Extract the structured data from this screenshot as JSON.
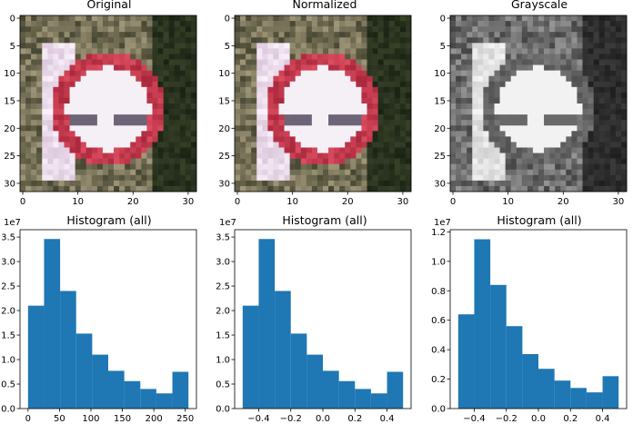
{
  "images": [
    {
      "title": "Original",
      "mode": "color",
      "xticks": [
        0,
        10,
        20,
        30
      ],
      "yticks": [
        0,
        5,
        10,
        15,
        20,
        25,
        30
      ]
    },
    {
      "title": "Normalized",
      "mode": "color",
      "xticks": [
        0,
        10,
        20,
        30
      ],
      "yticks": [
        0,
        5,
        10,
        15,
        20,
        25,
        30
      ]
    },
    {
      "title": "Grayscale",
      "mode": "gray",
      "xticks": [
        0,
        10,
        20,
        30
      ],
      "yticks": [
        0,
        5,
        10,
        15,
        20,
        25,
        30
      ]
    }
  ],
  "chart_data": [
    {
      "type": "bar",
      "title": "Histogram (all)",
      "bar_color": "#1f77b4",
      "xlim": [
        -12.75,
        267.75
      ],
      "ylim": [
        0,
        3.65
      ],
      "y_multiplier": "1e7",
      "bin_edges": [
        0,
        25.5,
        51,
        76.5,
        102,
        127.5,
        153,
        178.5,
        204,
        229.5,
        255
      ],
      "values": [
        2.1,
        3.46,
        2.4,
        1.53,
        1.1,
        0.77,
        0.56,
        0.4,
        0.31,
        0.75
      ],
      "xticks": [
        0,
        50,
        100,
        150,
        200,
        250
      ],
      "yticks": [
        0.0,
        0.5,
        1.0,
        1.5,
        2.0,
        2.5,
        3.0,
        3.5
      ],
      "xtick_labels": [
        "0",
        "50",
        "100",
        "150",
        "200",
        "250"
      ],
      "ytick_labels": [
        "0.0",
        "0.5",
        "1.0",
        "1.5",
        "2.0",
        "2.5",
        "3.0",
        "3.5"
      ]
    },
    {
      "type": "bar",
      "title": "Histogram (all)",
      "bar_color": "#1f77b4",
      "xlim": [
        -0.55,
        0.55
      ],
      "ylim": [
        0,
        3.65
      ],
      "y_multiplier": "1e7",
      "bin_edges": [
        -0.5,
        -0.4,
        -0.3,
        -0.2,
        -0.1,
        0.0,
        0.1,
        0.2,
        0.3,
        0.4,
        0.5
      ],
      "values": [
        2.1,
        3.46,
        2.4,
        1.53,
        1.1,
        0.77,
        0.56,
        0.4,
        0.31,
        0.75
      ],
      "xticks": [
        -0.4,
        -0.2,
        0.0,
        0.2,
        0.4
      ],
      "yticks": [
        0.0,
        0.5,
        1.0,
        1.5,
        2.0,
        2.5,
        3.0,
        3.5
      ],
      "xtick_labels": [
        "−0.4",
        "−0.2",
        "0.0",
        "0.2",
        "0.4"
      ],
      "ytick_labels": [
        "0.0",
        "0.5",
        "1.0",
        "1.5",
        "2.0",
        "2.5",
        "3.0",
        "3.5"
      ]
    },
    {
      "type": "bar",
      "title": "Histogram (all)",
      "bar_color": "#1f77b4",
      "xlim": [
        -0.55,
        0.55
      ],
      "ylim": [
        0,
        1.215
      ],
      "y_multiplier": "1e7",
      "bin_edges": [
        -0.5,
        -0.4,
        -0.3,
        -0.2,
        -0.1,
        0.0,
        0.1,
        0.2,
        0.3,
        0.4,
        0.5
      ],
      "values": [
        0.64,
        1.15,
        0.84,
        0.56,
        0.37,
        0.27,
        0.19,
        0.14,
        0.11,
        0.22
      ],
      "xticks": [
        -0.4,
        -0.2,
        0.0,
        0.2,
        0.4
      ],
      "yticks": [
        0.0,
        0.2,
        0.4,
        0.6,
        0.8,
        1.0,
        1.2
      ],
      "xtick_labels": [
        "−0.4",
        "−0.2",
        "0.0",
        "0.2",
        "0.4"
      ],
      "ytick_labels": [
        "0.0",
        "0.2",
        "0.4",
        "0.6",
        "0.8",
        "1.0",
        "1.2"
      ]
    }
  ]
}
